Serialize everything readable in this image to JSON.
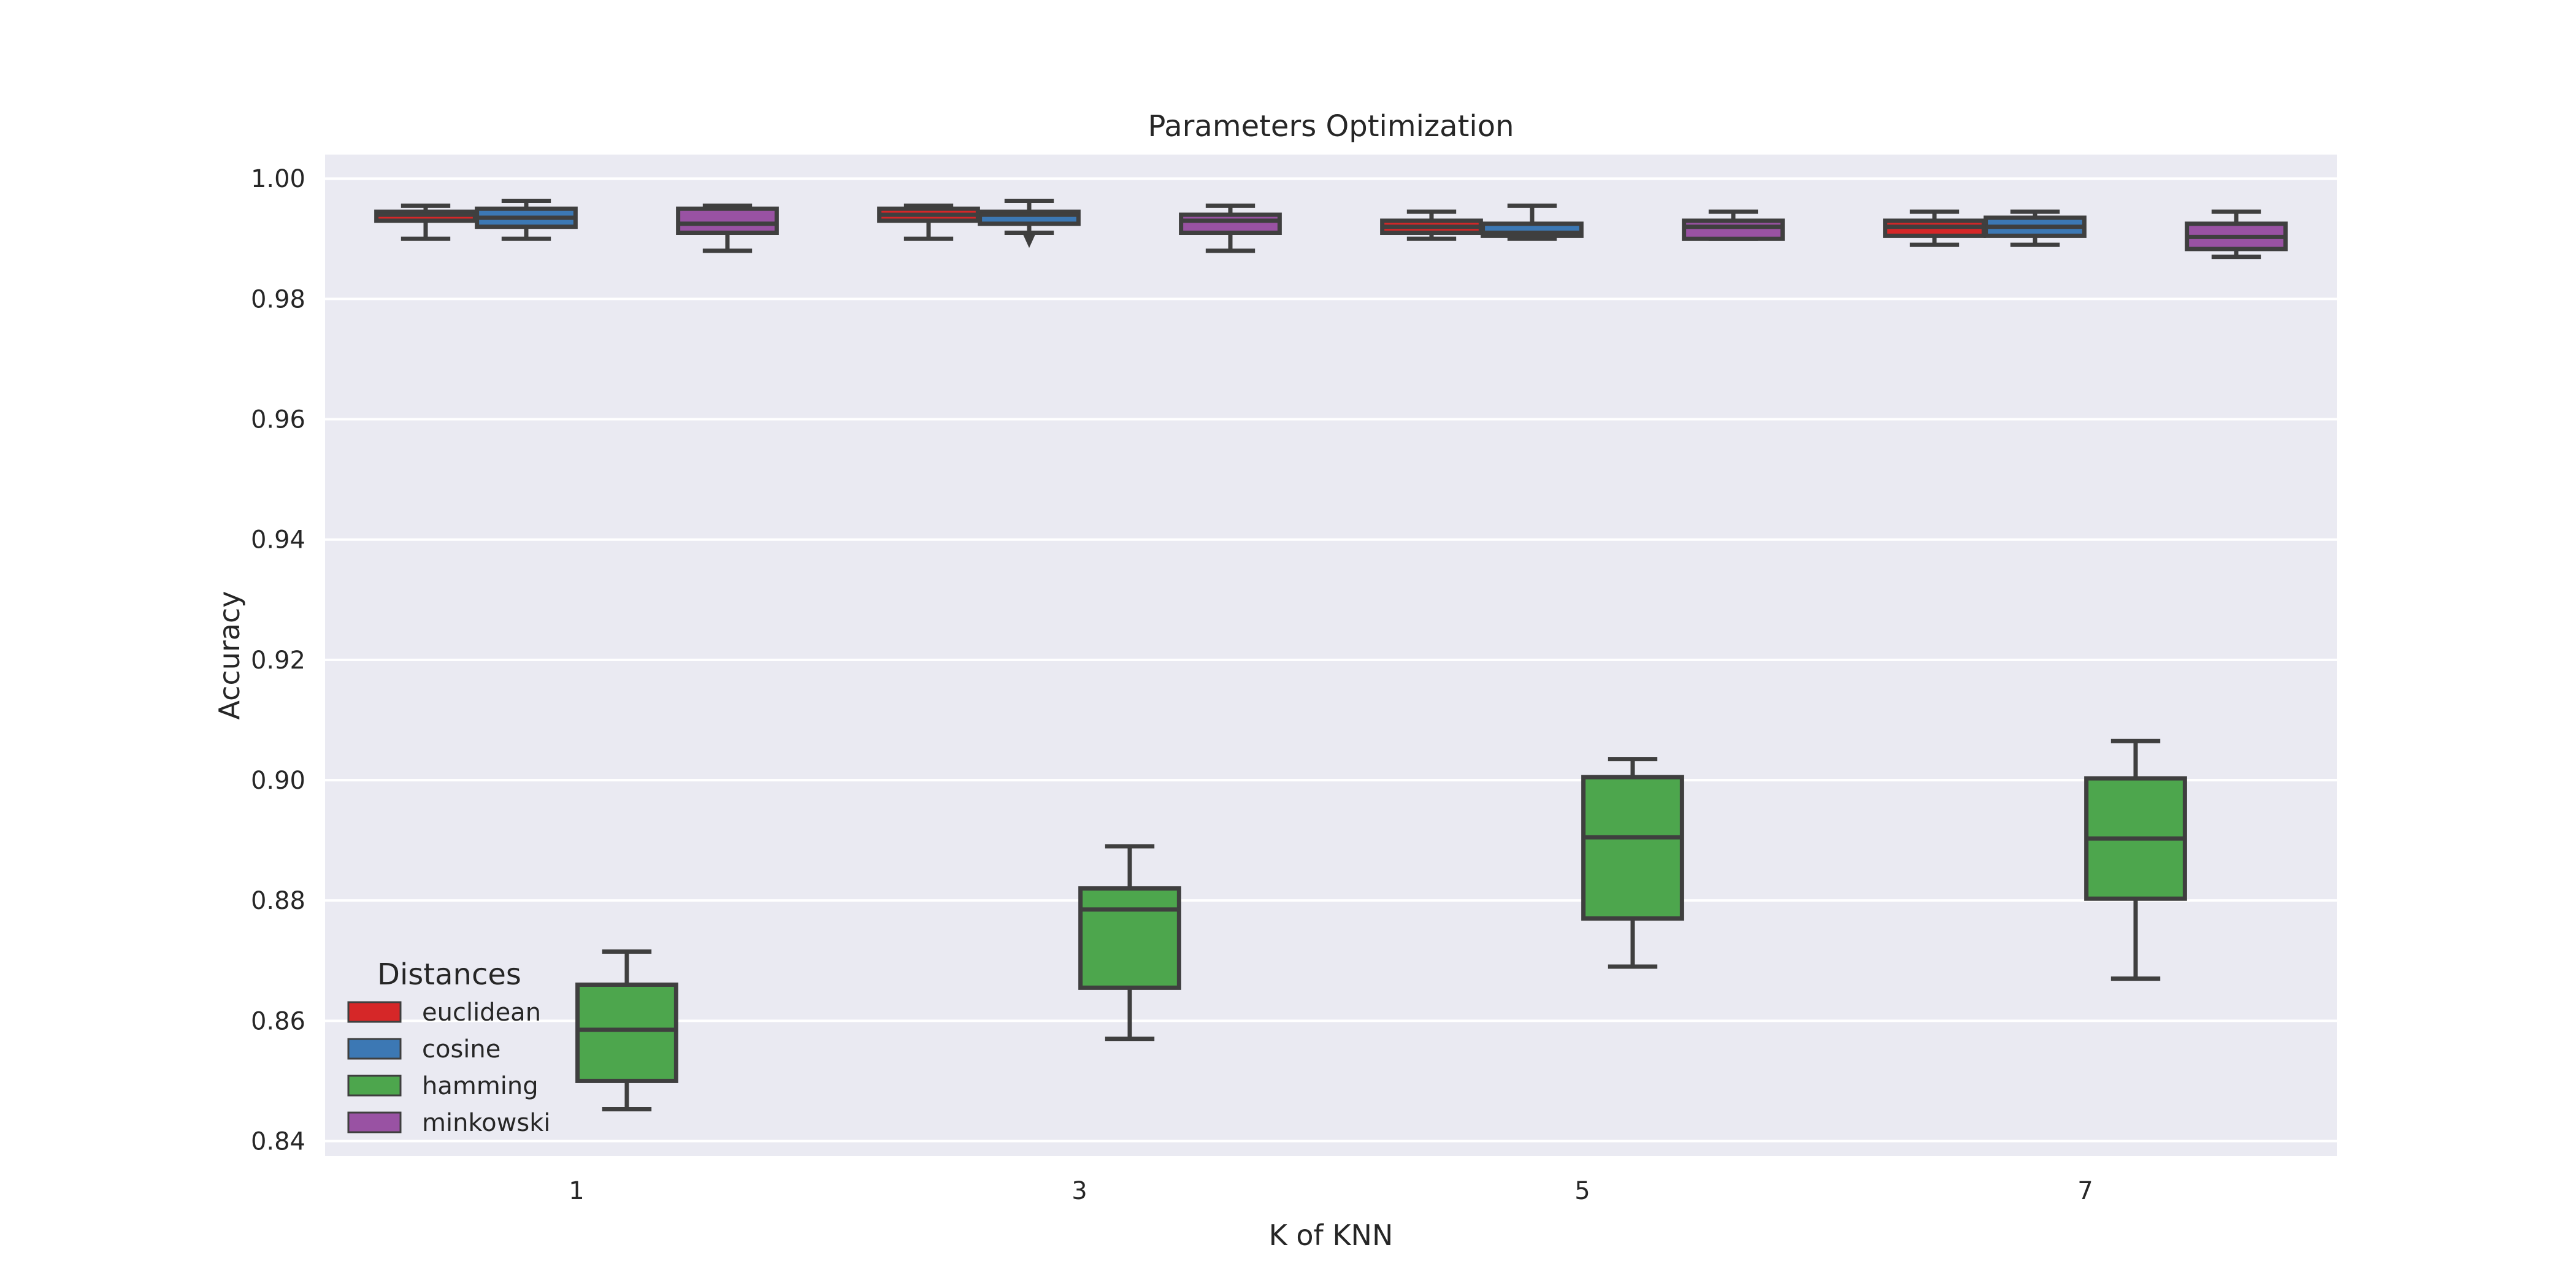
{
  "chart_data": {
    "type": "box",
    "title": "Parameters Optimization",
    "xlabel": "K of KNN",
    "ylabel": "Accuracy",
    "categories": [
      "1",
      "3",
      "5",
      "7"
    ],
    "ylim": [
      0.8375,
      1.004
    ],
    "yticks": [
      "0.84",
      "0.86",
      "0.88",
      "0.90",
      "0.92",
      "0.94",
      "0.96",
      "0.98",
      "1.00"
    ],
    "grid": true,
    "background": "#EAEAF2",
    "legend": {
      "title": "Distances",
      "placement": "lower-left"
    },
    "series": [
      {
        "name": "euclidean",
        "color": "#D62728",
        "boxes": [
          {
            "min": 0.99,
            "q1": 0.993,
            "median": 0.994,
            "q3": 0.9945,
            "max": 0.9955,
            "outliers": []
          },
          {
            "min": 0.99,
            "q1": 0.993,
            "median": 0.994,
            "q3": 0.995,
            "max": 0.9955,
            "outliers": []
          },
          {
            "min": 0.99,
            "q1": 0.991,
            "median": 0.992,
            "q3": 0.993,
            "max": 0.9945,
            "outliers": []
          },
          {
            "min": 0.989,
            "q1": 0.9905,
            "median": 0.992,
            "q3": 0.993,
            "max": 0.9945,
            "outliers": []
          }
        ]
      },
      {
        "name": "cosine",
        "color": "#3C78B4",
        "boxes": [
          {
            "min": 0.99,
            "q1": 0.992,
            "median": 0.9935,
            "q3": 0.995,
            "max": 0.9963,
            "outliers": []
          },
          {
            "min": 0.991,
            "q1": 0.9925,
            "median": 0.994,
            "q3": 0.9945,
            "max": 0.9963,
            "outliers": [
              0.9895
            ]
          },
          {
            "min": 0.99,
            "q1": 0.9905,
            "median": 0.991,
            "q3": 0.9925,
            "max": 0.9955,
            "outliers": []
          },
          {
            "min": 0.989,
            "q1": 0.9905,
            "median": 0.992,
            "q3": 0.9935,
            "max": 0.9945,
            "outliers": []
          }
        ]
      },
      {
        "name": "hamming",
        "color": "#4DA64D",
        "boxes": [
          {
            "min": 0.8453,
            "q1": 0.85,
            "median": 0.8585,
            "q3": 0.866,
            "max": 0.8715,
            "outliers": []
          },
          {
            "min": 0.857,
            "q1": 0.8655,
            "median": 0.8785,
            "q3": 0.882,
            "max": 0.889,
            "outliers": []
          },
          {
            "min": 0.869,
            "q1": 0.877,
            "median": 0.8905,
            "q3": 0.9005,
            "max": 0.9035,
            "outliers": []
          },
          {
            "min": 0.867,
            "q1": 0.8803,
            "median": 0.8903,
            "q3": 0.9003,
            "max": 0.9065,
            "outliers": []
          }
        ]
      },
      {
        "name": "minkowski",
        "color": "#9952A3",
        "boxes": [
          {
            "min": 0.988,
            "q1": 0.991,
            "median": 0.9925,
            "q3": 0.995,
            "max": 0.9955,
            "outliers": []
          },
          {
            "min": 0.988,
            "q1": 0.991,
            "median": 0.993,
            "q3": 0.994,
            "max": 0.9955,
            "outliers": []
          },
          {
            "min": 0.99,
            "q1": 0.99,
            "median": 0.992,
            "q3": 0.993,
            "max": 0.9945,
            "outliers": []
          },
          {
            "min": 0.987,
            "q1": 0.9883,
            "median": 0.9903,
            "q3": 0.9925,
            "max": 0.9945,
            "outliers": []
          }
        ]
      }
    ]
  }
}
